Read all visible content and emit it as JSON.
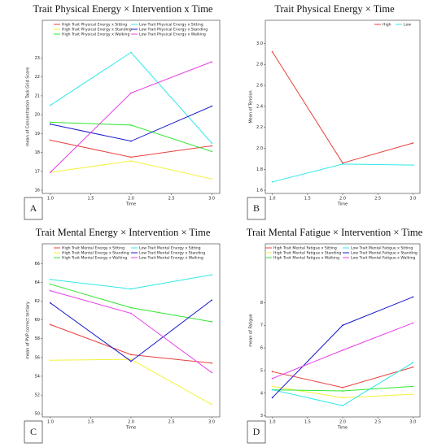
{
  "chart_data": [
    {
      "type": "line",
      "panel_label": "A",
      "title": "Trait Physical Energy × Intervention x Time",
      "x_label": "Time",
      "y_label": "mean of Concentration Task Grid Score",
      "x": [
        1,
        2,
        3
      ],
      "xlim": [
        0.9,
        3.1
      ],
      "xticks": [
        {
          "value": 1,
          "label": "1.0"
        },
        {
          "value": 1.5,
          "label": "1.5"
        },
        {
          "value": 2,
          "label": "2.0"
        },
        {
          "value": 2.5,
          "label": "2.5"
        },
        {
          "value": 3,
          "label": "3.0"
        }
      ],
      "ylim": [
        15.83,
        25.0
      ],
      "yticks": [
        16,
        17,
        18,
        19,
        20,
        21,
        22,
        23
      ],
      "legend": "upper center",
      "legend_ncol": 2,
      "series": [
        {
          "name": "High Trait Physical Energy x Sitting",
          "color": "#e8413c",
          "values": [
            18.65,
            17.75,
            18.35
          ]
        },
        {
          "name": "High Trait Physical Energy x Standing",
          "color": "#f2f23a",
          "values": [
            16.95,
            17.55,
            16.6
          ]
        },
        {
          "name": "High Trait Physical Energy x Walking",
          "color": "#2ee82e",
          "values": [
            19.6,
            19.45,
            18.05
          ]
        },
        {
          "name": "Low Trait Physical Energy x Sitting",
          "color": "#2fe8e8",
          "values": [
            20.5,
            23.3,
            18.5
          ]
        },
        {
          "name": "Low Trait Physical Energy x Standing",
          "color": "#1a1acc",
          "values": [
            19.5,
            18.6,
            20.45
          ]
        },
        {
          "name": "Low Trait Physical Energy x Walking",
          "color": "#e83de8",
          "values": [
            16.95,
            21.15,
            22.8
          ]
        }
      ]
    },
    {
      "type": "line",
      "panel_label": "B",
      "title": "Trait Physical Energy × Time",
      "x_label": "Time",
      "y_label": "Mean of Tension",
      "x": [
        1,
        2,
        3
      ],
      "xlim": [
        0.9,
        3.1
      ],
      "xticks": [
        {
          "value": 1,
          "label": "1.0"
        },
        {
          "value": 1.5,
          "label": "1.5"
        },
        {
          "value": 2,
          "label": "2.0"
        },
        {
          "value": 2.5,
          "label": "2.5"
        },
        {
          "value": 3,
          "label": "3.0"
        }
      ],
      "ylim": [
        1.57,
        3.22
      ],
      "yticks": [
        1.6,
        1.8,
        {
          "value": 2,
          "label": "2.0"
        },
        2.2,
        2.4,
        2.6,
        2.8,
        {
          "value": 3,
          "label": "3.0"
        }
      ],
      "legend": "upper right",
      "legend_ncol": 2,
      "series": [
        {
          "name": "High",
          "color": "#e8413c",
          "values": [
            2.92,
            1.86,
            2.05
          ]
        },
        {
          "name": "Low",
          "color": "#2fe8e8",
          "values": [
            1.68,
            1.85,
            1.84
          ]
        }
      ]
    },
    {
      "type": "line",
      "panel_label": "C",
      "title": "Trait Mental Energy × Intervention × Time",
      "x_label": "Time",
      "y_label": "mean of PVP correct tertiary",
      "x": [
        1,
        2,
        3
      ],
      "xlim": [
        0.9,
        3.1
      ],
      "xticks": [
        {
          "value": 1,
          "label": "1.0"
        },
        {
          "value": 1.5,
          "label": "1.5"
        },
        {
          "value": 2,
          "label": "2.0"
        },
        {
          "value": 2.5,
          "label": "2.5"
        },
        {
          "value": 3,
          "label": "3.0"
        }
      ],
      "ylim": [
        49.67,
        68.1
      ],
      "yticks": [
        50,
        52,
        54,
        56,
        58,
        60,
        62,
        64,
        66
      ],
      "legend": "upper center",
      "legend_ncol": 2,
      "series": [
        {
          "name": "High Trait Mental Energy x Sitting",
          "color": "#e8413c",
          "values": [
            59.5,
            56.3,
            55.4
          ]
        },
        {
          "name": "High Trait Mental Energy x Standing",
          "color": "#f2f23a",
          "values": [
            55.7,
            55.8,
            51.0
          ]
        },
        {
          "name": "High Trait Mental Energy x Walking",
          "color": "#2ee82e",
          "values": [
            63.8,
            61.3,
            59.8
          ]
        },
        {
          "name": "Low Trait Mental Energy x Sitting",
          "color": "#2fe8e8",
          "values": [
            64.3,
            63.3,
            64.8
          ]
        },
        {
          "name": "Low Trait Mental Energy x Standing",
          "color": "#1a1acc",
          "values": [
            61.8,
            55.6,
            62.1
          ]
        },
        {
          "name": "Low Trait Mental Energy x Walking",
          "color": "#e83de8",
          "values": [
            63.1,
            60.7,
            54.4
          ]
        }
      ]
    },
    {
      "type": "line",
      "panel_label": "D",
      "title": "Trait Mental Fatigue × Intervention × Time",
      "x_label": "Time",
      "y_label": "mean of Fatigue",
      "x": [
        1,
        2,
        3
      ],
      "xlim": [
        0.9,
        3.1
      ],
      "xticks": [
        {
          "value": 1,
          "label": "1.0"
        },
        {
          "value": 1.5,
          "label": "1.5"
        },
        {
          "value": 2,
          "label": "2.0"
        },
        {
          "value": 2.5,
          "label": "2.5"
        },
        {
          "value": 3,
          "label": "3.0"
        }
      ],
      "ylim": [
        2.95,
        10.6
      ],
      "yticks": [
        3,
        4,
        5,
        6,
        7,
        8
      ],
      "legend": "upper center",
      "legend_ncol": 2,
      "series": [
        {
          "name": "High Trait Mental Fatigue x Sitting",
          "color": "#e8413c",
          "values": [
            4.95,
            4.25,
            5.15
          ]
        },
        {
          "name": "High Trait Mental Fatigue x Standing",
          "color": "#f2f23a",
          "values": [
            4.3,
            3.8,
            3.95
          ]
        },
        {
          "name": "High Trait Mental Fatigue x Walking",
          "color": "#2ee82e",
          "values": [
            4.15,
            4.1,
            4.3
          ]
        },
        {
          "name": "Low Trait Mental Fatigue x Sitting",
          "color": "#2fe8e8",
          "values": [
            4.15,
            3.45,
            5.35
          ]
        },
        {
          "name": "Low Trait Mental Fatigue x Standing",
          "color": "#1a1acc",
          "values": [
            3.8,
            7.0,
            8.25
          ]
        },
        {
          "name": "Low Trait Mental Fatigue x Walking",
          "color": "#e83de8",
          "values": [
            4.65,
            5.9,
            7.1
          ]
        }
      ]
    }
  ]
}
